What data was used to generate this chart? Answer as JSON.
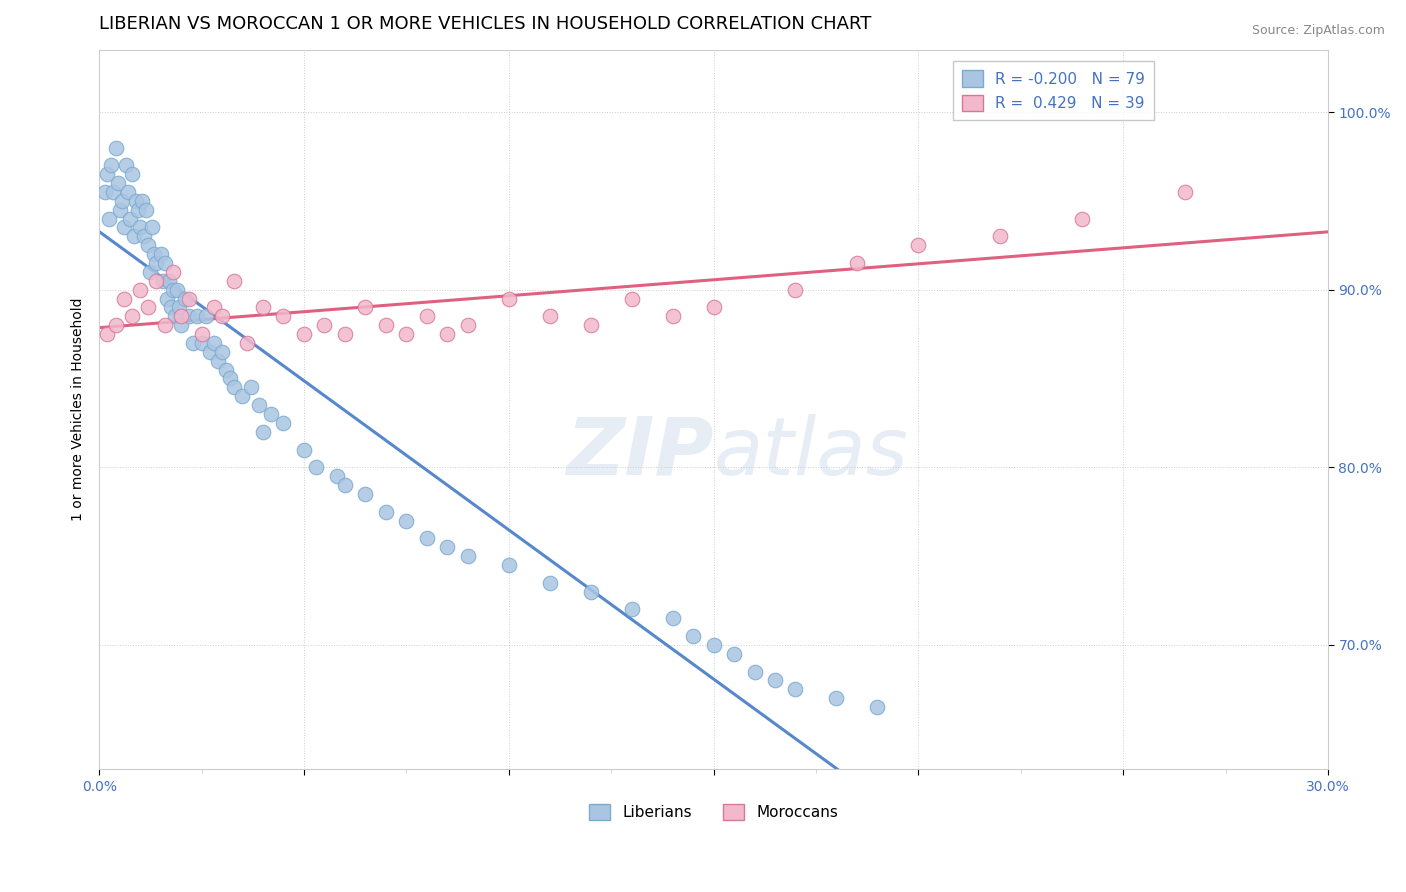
{
  "title": "LIBERIAN VS MOROCCAN 1 OR MORE VEHICLES IN HOUSEHOLD CORRELATION CHART",
  "source": "Source: ZipAtlas.com",
  "ylabel": "1 or more Vehicles in Household",
  "xmin": 0.0,
  "xmax": 30.0,
  "ymin": 63.0,
  "ymax": 103.5,
  "liberian_R": -0.2,
  "liberian_N": 79,
  "moroccan_R": 0.429,
  "moroccan_N": 39,
  "liberian_color": "#aac5e2",
  "liberian_edge": "#7aaad0",
  "moroccan_color": "#f2b8cc",
  "moroccan_edge": "#d87898",
  "liberian_line_color": "#5588cc",
  "moroccan_line_color": "#e06080",
  "liberian_x": [
    0.15,
    0.2,
    0.25,
    0.3,
    0.35,
    0.4,
    0.45,
    0.5,
    0.55,
    0.6,
    0.65,
    0.7,
    0.75,
    0.8,
    0.85,
    0.9,
    0.95,
    1.0,
    1.05,
    1.1,
    1.15,
    1.2,
    1.25,
    1.3,
    1.35,
    1.4,
    1.5,
    1.55,
    1.6,
    1.65,
    1.7,
    1.75,
    1.8,
    1.85,
    1.9,
    1.95,
    2.0,
    2.1,
    2.2,
    2.3,
    2.4,
    2.5,
    2.6,
    2.7,
    2.8,
    2.9,
    3.0,
    3.1,
    3.2,
    3.3,
    3.5,
    3.7,
    3.9,
    4.0,
    4.2,
    4.5,
    5.0,
    5.3,
    5.8,
    6.0,
    6.5,
    7.0,
    7.5,
    8.0,
    8.5,
    9.0,
    10.0,
    11.0,
    12.0,
    13.0,
    14.0,
    14.5,
    15.0,
    15.5,
    16.0,
    16.5,
    17.0,
    18.0,
    19.0
  ],
  "liberian_y": [
    95.5,
    96.5,
    94.0,
    97.0,
    95.5,
    98.0,
    96.0,
    94.5,
    95.0,
    93.5,
    97.0,
    95.5,
    94.0,
    96.5,
    93.0,
    95.0,
    94.5,
    93.5,
    95.0,
    93.0,
    94.5,
    92.5,
    91.0,
    93.5,
    92.0,
    91.5,
    92.0,
    90.5,
    91.5,
    89.5,
    90.5,
    89.0,
    90.0,
    88.5,
    90.0,
    89.0,
    88.0,
    89.5,
    88.5,
    87.0,
    88.5,
    87.0,
    88.5,
    86.5,
    87.0,
    86.0,
    86.5,
    85.5,
    85.0,
    84.5,
    84.0,
    84.5,
    83.5,
    82.0,
    83.0,
    82.5,
    81.0,
    80.0,
    79.5,
    79.0,
    78.5,
    77.5,
    77.0,
    76.0,
    75.5,
    75.0,
    74.5,
    73.5,
    73.0,
    72.0,
    71.5,
    70.5,
    70.0,
    69.5,
    68.5,
    68.0,
    67.5,
    67.0,
    66.5
  ],
  "moroccan_x": [
    0.2,
    0.4,
    0.6,
    0.8,
    1.0,
    1.2,
    1.4,
    1.6,
    1.8,
    2.0,
    2.2,
    2.5,
    2.8,
    3.0,
    3.3,
    3.6,
    4.0,
    4.5,
    5.0,
    5.5,
    6.0,
    6.5,
    7.0,
    7.5,
    8.0,
    8.5,
    9.0,
    10.0,
    11.0,
    12.0,
    13.0,
    14.0,
    15.0,
    17.0,
    18.5,
    20.0,
    22.0,
    24.0,
    26.5
  ],
  "moroccan_y": [
    87.5,
    88.0,
    89.5,
    88.5,
    90.0,
    89.0,
    90.5,
    88.0,
    91.0,
    88.5,
    89.5,
    87.5,
    89.0,
    88.5,
    90.5,
    87.0,
    89.0,
    88.5,
    87.5,
    88.0,
    87.5,
    89.0,
    88.0,
    87.5,
    88.5,
    87.5,
    88.0,
    89.5,
    88.5,
    88.0,
    89.5,
    88.5,
    89.0,
    90.0,
    91.5,
    92.5,
    93.0,
    94.0,
    95.5
  ]
}
